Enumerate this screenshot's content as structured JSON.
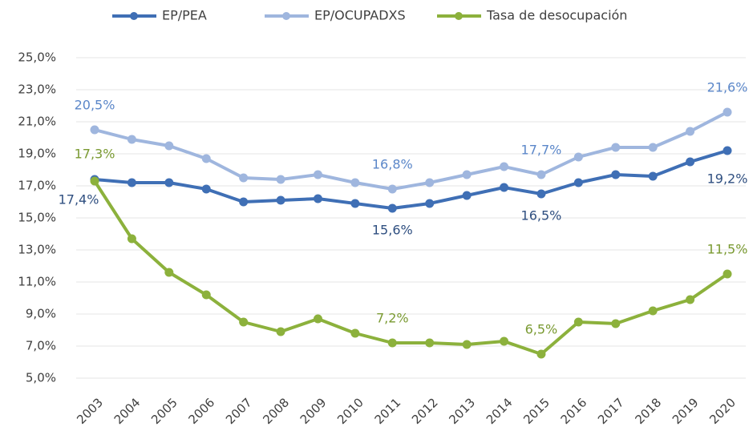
{
  "chart_data": {
    "type": "line",
    "categories": [
      "2003",
      "2004",
      "2005",
      "2006",
      "2007",
      "2008",
      "2009",
      "2010",
      "2011",
      "2012",
      "2013",
      "2014",
      "2015",
      "2016",
      "2017",
      "2018",
      "2019",
      "2020"
    ],
    "series": [
      {
        "name": "EP/PEA",
        "color": "#3f6fb5",
        "label_color": "#2f4f80",
        "values": [
          17.4,
          17.2,
          17.2,
          16.8,
          16.0,
          16.1,
          16.2,
          15.9,
          15.6,
          15.9,
          16.4,
          16.9,
          16.5,
          17.2,
          17.7,
          17.6,
          18.5,
          19.2
        ],
        "value_labels": [
          "17,4%",
          null,
          null,
          null,
          null,
          null,
          null,
          null,
          "15,6%",
          null,
          null,
          null,
          "16,5%",
          null,
          null,
          null,
          null,
          "19,2%"
        ]
      },
      {
        "name": "EP/OCUPADXS",
        "color": "#9fb6de",
        "label_color": "#5b87c9",
        "values": [
          20.5,
          19.9,
          19.5,
          18.7,
          17.5,
          17.4,
          17.7,
          17.2,
          16.8,
          17.2,
          17.7,
          18.2,
          17.7,
          18.8,
          19.4,
          19.4,
          20.4,
          21.6
        ],
        "value_labels": [
          "20,5%",
          null,
          null,
          null,
          null,
          null,
          null,
          null,
          "16,8%",
          null,
          null,
          null,
          "17,7%",
          null,
          null,
          null,
          null,
          "21,6%"
        ]
      },
      {
        "name": "Tasa de desocupación",
        "color": "#8cb13c",
        "label_color": "#7a9a32",
        "values": [
          17.3,
          13.7,
          11.6,
          10.2,
          8.5,
          7.9,
          8.7,
          7.8,
          7.2,
          7.2,
          7.1,
          7.3,
          6.5,
          8.5,
          8.4,
          9.2,
          9.9,
          11.5
        ],
        "value_labels": [
          "17,3%",
          null,
          null,
          null,
          null,
          null,
          null,
          null,
          "7,2%",
          null,
          null,
          null,
          "6,5%",
          null,
          null,
          null,
          null,
          "11,5%"
        ]
      }
    ],
    "ylim": [
      5,
      25
    ],
    "yticks": [
      {
        "value": 5,
        "label": "5,0%"
      },
      {
        "value": 7,
        "label": "7,0%"
      },
      {
        "value": 9,
        "label": "9,0%"
      },
      {
        "value": 11,
        "label": "11,0%"
      },
      {
        "value": 13,
        "label": "13,0%"
      },
      {
        "value": 15,
        "label": "15,0%"
      },
      {
        "value": 17,
        "label": "17,0%"
      },
      {
        "value": 19,
        "label": "19,0%"
      },
      {
        "value": 21,
        "label": "21,0%"
      },
      {
        "value": 23,
        "label": "23,0%"
      },
      {
        "value": 25,
        "label": "25,0%"
      }
    ],
    "grid": true,
    "legend": "top"
  }
}
